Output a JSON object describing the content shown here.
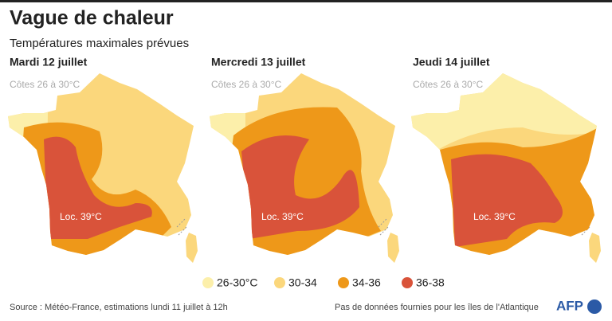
{
  "header": {
    "title": "Vague de chaleur",
    "subtitle": "Températures maximales prévues"
  },
  "panels": [
    {
      "title": "Mardi 12 juillet",
      "coast": "Côtes 26 à 30°C",
      "location": "Loc. 39°C"
    },
    {
      "title": "Mercredi 13 juillet",
      "coast": "Côtes 26 à 30°C",
      "location": "Loc. 39°C"
    },
    {
      "title": "Jeudi 14 juillet",
      "coast": "Côtes 26 à 30°C",
      "location": "Loc. 39°C"
    }
  ],
  "legend": [
    {
      "label": "26-30°C",
      "color": "#fcefaa"
    },
    {
      "label": "30-34",
      "color": "#fbd77c"
    },
    {
      "label": "34-36",
      "color": "#ee9819"
    },
    {
      "label": "36-38",
      "color": "#d9533a"
    }
  ],
  "footer": {
    "source": "Source : Météo-France, estimations lundi 11 juillet à 12h",
    "note": "Pas de données fournies pour les îles de l'Atlantique",
    "logo": "AFP"
  }
}
